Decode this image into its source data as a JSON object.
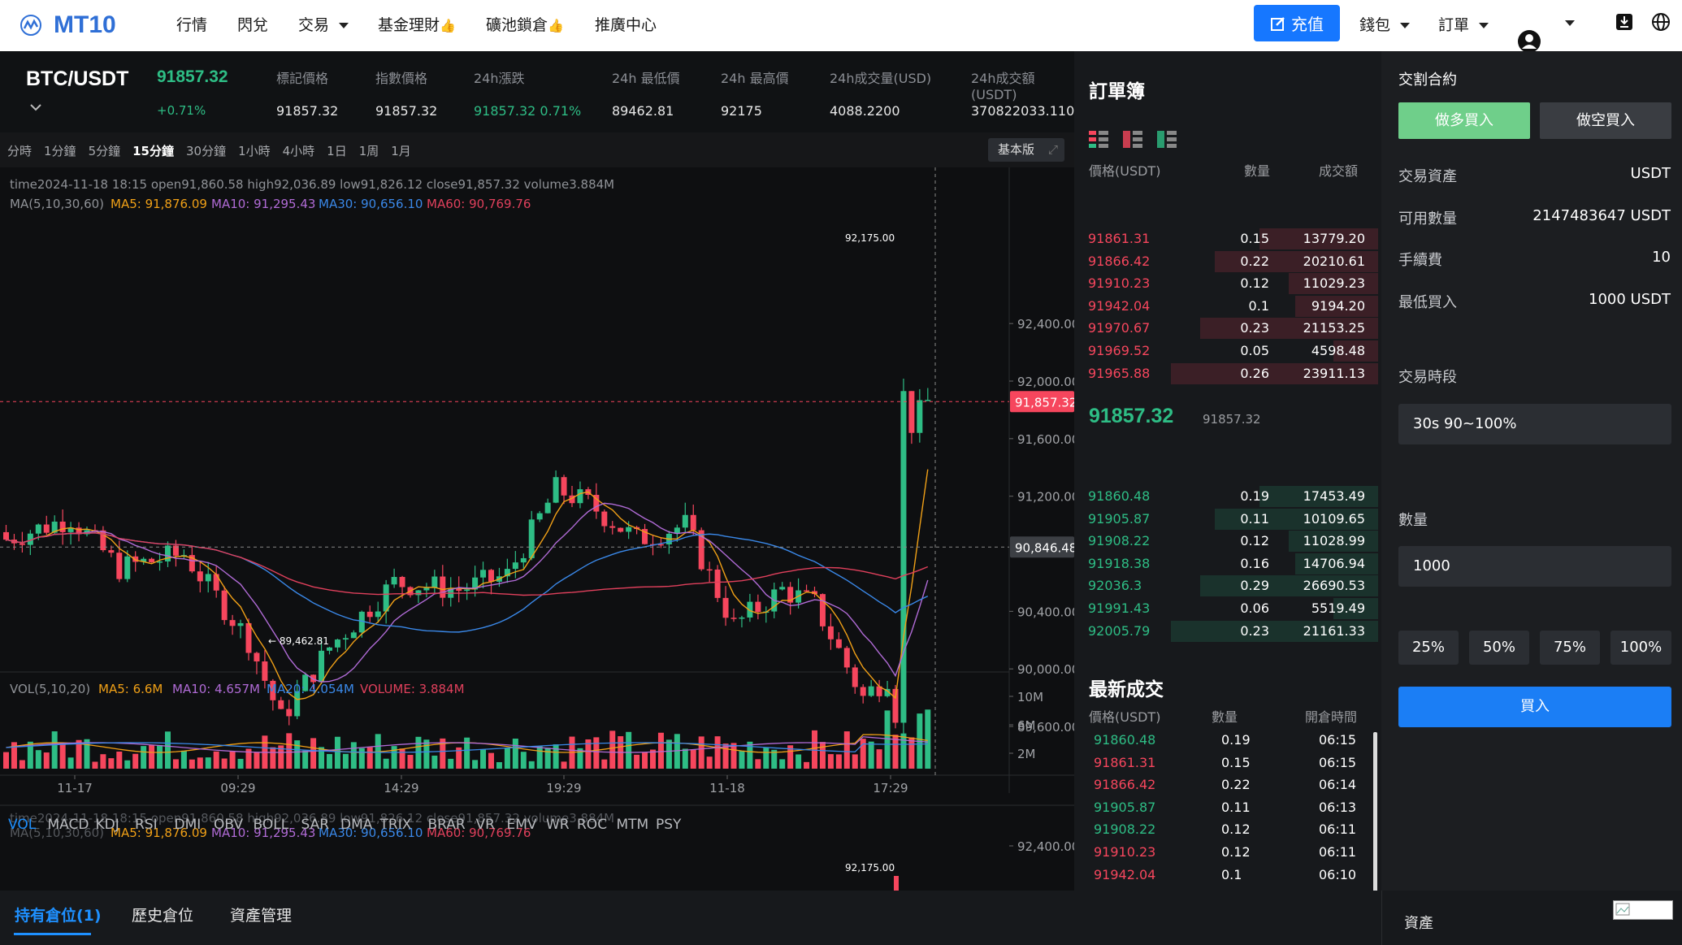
{
  "brand": "MT10",
  "nav": [
    "行情",
    "閃兌",
    "交易",
    "基金理財",
    "礦池鎖倉",
    "推廣中心"
  ],
  "deposit": "充值",
  "wallet": "錢包",
  "orders": "訂單",
  "pair": "BTC/USDT",
  "last_price": "91857.32",
  "change_pct": "+0.71%",
  "ticker_labels": [
    "標記價格",
    "指數價格",
    "24h漲跌",
    "24h 最低價",
    "24h 最高價",
    "24h成交量(USD)",
    "24h成交額(USDT)"
  ],
  "ticker_values": [
    "91857.32",
    "91857.32",
    "91857.32  0.71%",
    "89462.81",
    "92175",
    "4088.2200",
    "370822033.1100"
  ],
  "timeframes": [
    "分時",
    "1分鐘",
    "5分鐘",
    "15分鐘",
    "30分鐘",
    "1小時",
    "4小時",
    "1日",
    "1周",
    "1月"
  ],
  "active_tf": "15分鐘",
  "basic_btn": "基本版",
  "ohlc_line": "time2024-11-18 18:15    open91,860.58    high92,036.89    low91,826.12    close91,857.32    volume3.884M",
  "ma_label": "MA(5,10,30,60)",
  "ma_values": [
    "MA5: 91,876.09",
    "MA10: 91,295.43",
    "MA30: 90,656.10",
    "MA60: 90,769.76"
  ],
  "ma_colors": [
    "#f0a017",
    "#b06bd6",
    "#3a88e8",
    "#e0405c"
  ],
  "price_axis": [
    "92,400.00",
    "92,000.00",
    "91,600.00",
    "91,200.00",
    "90,400.00",
    "90,000.00",
    "89,600.00"
  ],
  "price_tag_last": "91,857.32",
  "price_tag_cross": "90,846.48",
  "high_mark": "92,175.00",
  "low_mark": "89,462.81",
  "vol_label": "VOL(5,10,20)",
  "vol_values": [
    "MA5: 6.6M",
    "MA10: 4.657M",
    "MA20: 4.054M",
    "VOLUME: 3.884M"
  ],
  "vol_colors": [
    "#f0a017",
    "#b06bd6",
    "#3a88e8",
    "#e0405c"
  ],
  "vol_axis": [
    "10M",
    "6M",
    "2M"
  ],
  "time_axis": [
    "11-17",
    "09:29",
    "14:29",
    "19:29",
    "11-18",
    "17:29"
  ],
  "indicators": [
    "VOL",
    "MACD",
    "KDJ",
    "RSI",
    "DMI",
    "OBV",
    "BOLL",
    "SAR",
    "DMA",
    "TRIX",
    "BRAR",
    "VR",
    "EMV",
    "WR",
    "ROC",
    "MTM",
    "PSY"
  ],
  "lower_axis": "92,400.00",
  "orderbook": {
    "title": "訂單簿",
    "headers": [
      "價格(USDT)",
      "數量",
      "成交額"
    ],
    "asks": [
      [
        "91861.31",
        "0.15",
        "13779.20"
      ],
      [
        "91866.42",
        "0.22",
        "20210.61"
      ],
      [
        "91910.23",
        "0.12",
        "11029.23"
      ],
      [
        "91942.04",
        "0.1",
        "9194.20"
      ],
      [
        "91970.67",
        "0.23",
        "21153.25"
      ],
      [
        "91969.52",
        "0.05",
        "4598.48"
      ],
      [
        "91965.88",
        "0.26",
        "23911.13"
      ]
    ],
    "mid_price": "91857.32",
    "mid_sub": "91857.32",
    "bids": [
      [
        "91860.48",
        "0.19",
        "17453.49"
      ],
      [
        "91905.87",
        "0.11",
        "10109.65"
      ],
      [
        "91908.22",
        "0.12",
        "11028.99"
      ],
      [
        "91918.38",
        "0.16",
        "14706.94"
      ],
      [
        "92036.3",
        "0.29",
        "26690.53"
      ],
      [
        "91991.43",
        "0.06",
        "5519.49"
      ],
      [
        "92005.79",
        "0.23",
        "21161.33"
      ]
    ]
  },
  "trades": {
    "title": "最新成交",
    "headers": [
      "價格(USDT)",
      "數量",
      "開倉時間"
    ],
    "rows": [
      [
        "91860.48",
        "0.19",
        "06:15",
        "up"
      ],
      [
        "91861.31",
        "0.15",
        "06:15",
        "down"
      ],
      [
        "91866.42",
        "0.22",
        "06:14",
        "down"
      ],
      [
        "91905.87",
        "0.11",
        "06:13",
        "up"
      ],
      [
        "91908.22",
        "0.12",
        "06:11",
        "up"
      ],
      [
        "91910.23",
        "0.12",
        "06:11",
        "down"
      ],
      [
        "91942.04",
        "0.1",
        "06:10",
        "down"
      ]
    ]
  },
  "right": {
    "title": "交割合約",
    "long_btn": "做多買入",
    "short_btn": "做空買入",
    "rows": [
      [
        "交易資產",
        "USDT"
      ],
      [
        "可用數量",
        "2147483647 USDT"
      ],
      [
        "手續費",
        "10"
      ],
      [
        "最低買入",
        "1000 USDT"
      ]
    ],
    "period_label": "交易時段",
    "period_value": "30s 90~100%",
    "qty_label": "數量",
    "qty_value": "1000",
    "pcts": [
      "25%",
      "50%",
      "75%",
      "100%"
    ],
    "buy": "買入",
    "assets": "資產"
  },
  "bottom_tabs": [
    "持有倉位(1)",
    "歷史倉位",
    "資產管理"
  ],
  "up_color": "#2ebd85",
  "down_color": "#f6465d"
}
